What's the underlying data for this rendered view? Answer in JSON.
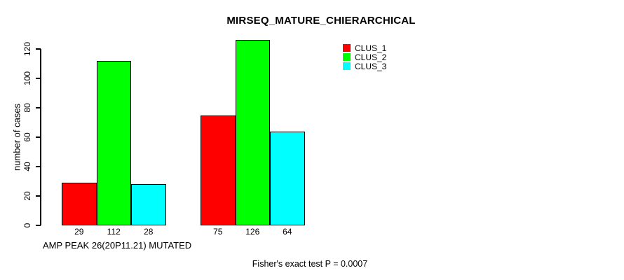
{
  "chart_data": {
    "type": "bar",
    "title": "MIRSEQ_MATURE_CHIERARCHICAL",
    "ylabel": "number of cases",
    "xlabel": "AMP PEAK 26(20P11.21) MUTATED",
    "annotation": "Fisher's exact test P = 0.0007",
    "ylim": [
      0,
      130
    ],
    "yticks": [
      0,
      20,
      40,
      60,
      80,
      100,
      120
    ],
    "grid": false,
    "legend_position": "top-right",
    "bar_border_color": "#000000",
    "groups": 2,
    "series": [
      {
        "name": "CLUS_1",
        "color": "#ff0000",
        "values": [
          29,
          75
        ]
      },
      {
        "name": "CLUS_2",
        "color": "#00ff00",
        "values": [
          112,
          126
        ]
      },
      {
        "name": "CLUS_3",
        "color": "#00ffff",
        "values": [
          28,
          64
        ]
      }
    ],
    "bar_value_labels": [
      [
        "29",
        "112",
        "28"
      ],
      [
        "75",
        "126",
        "64"
      ]
    ]
  }
}
